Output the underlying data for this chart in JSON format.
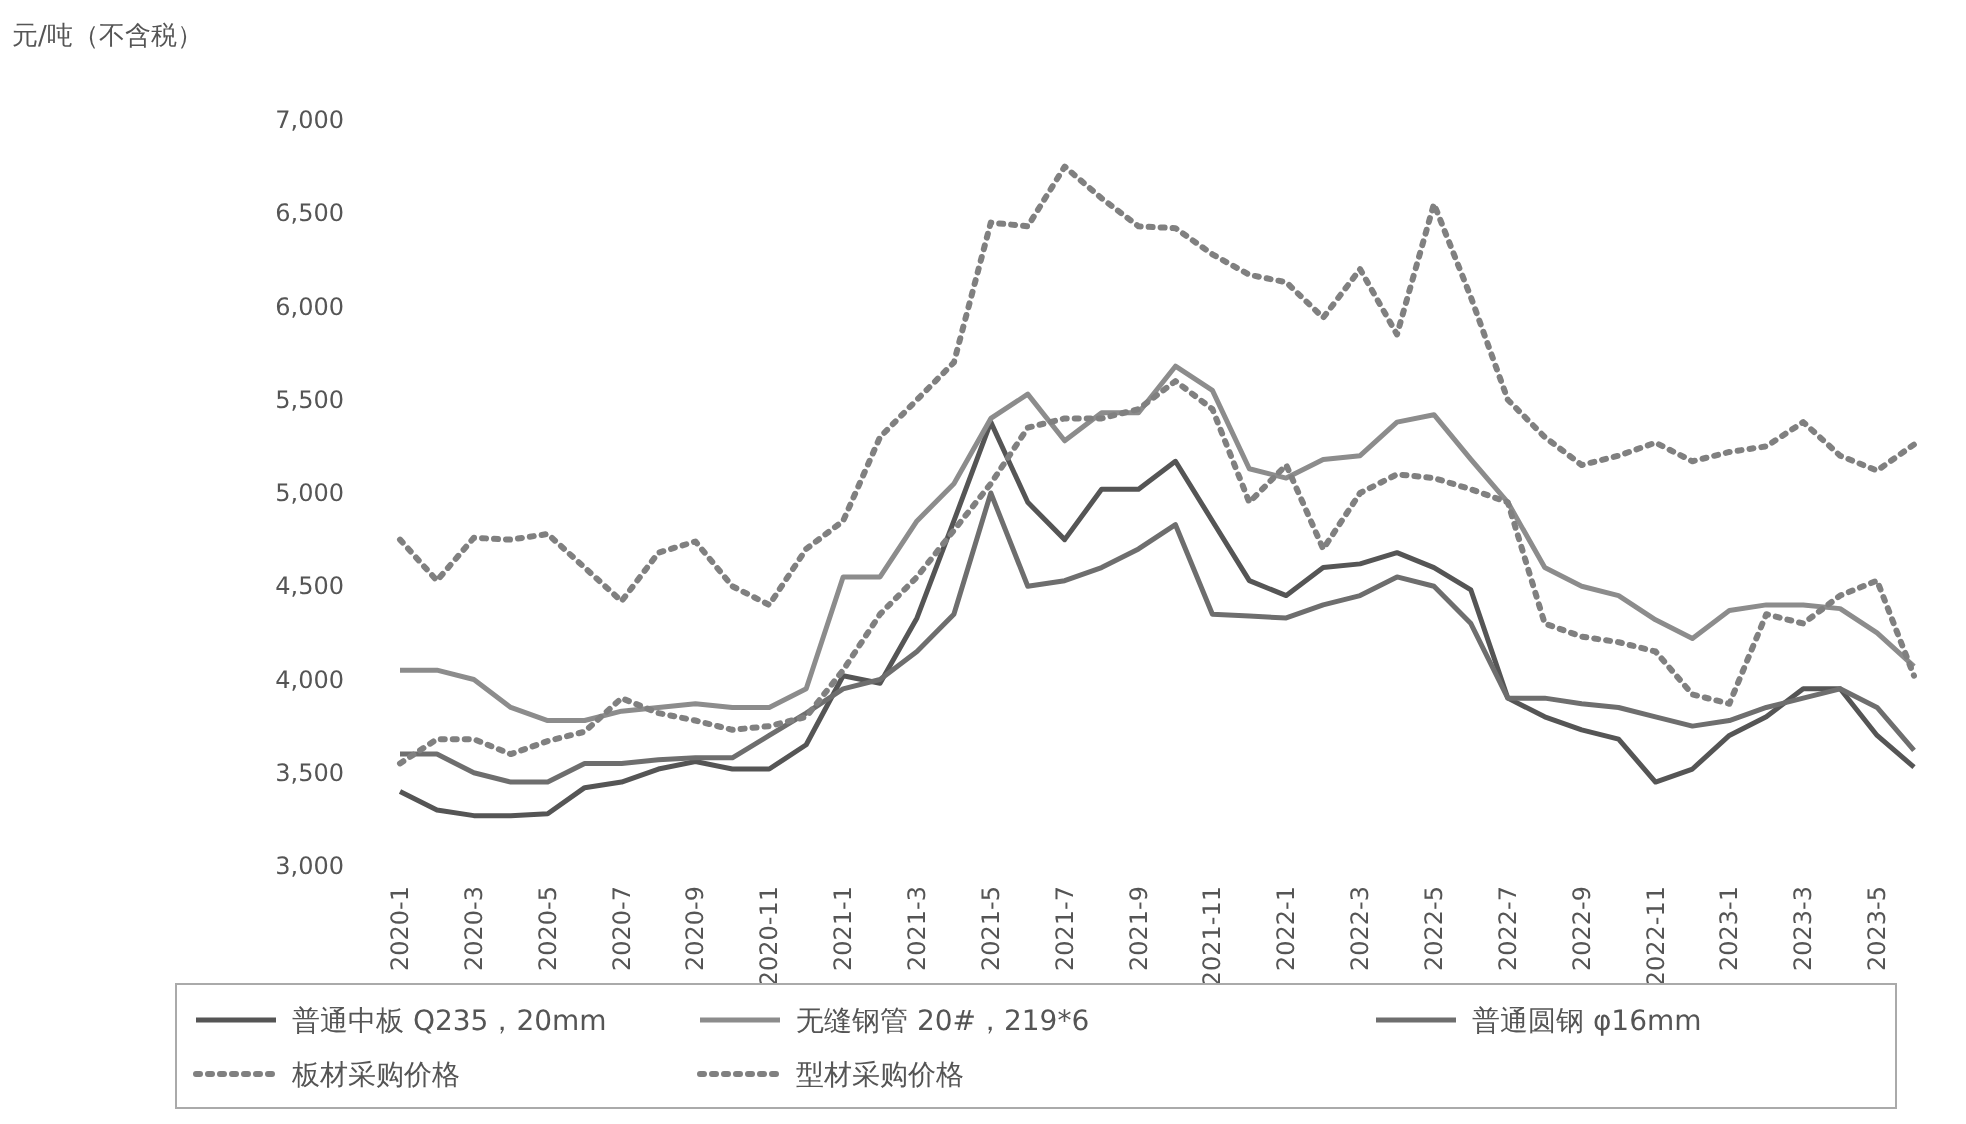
{
  "chart_data": {
    "type": "line",
    "ylabel": "元/吨（不含税）",
    "categories": [
      "2020-1",
      null,
      "2020-3",
      null,
      "2020-5",
      null,
      "2020-7",
      null,
      "2020-9",
      null,
      "2020-11",
      null,
      "2021-1",
      null,
      "2021-3",
      null,
      "2021-5",
      null,
      "2021-7",
      null,
      "2021-9",
      null,
      "2021-11",
      null,
      "2022-1",
      null,
      "2022-3",
      null,
      "2022-5",
      null,
      "2022-7",
      null,
      "2022-9",
      null,
      "2022-11",
      null,
      "2023-1",
      null,
      "2023-3",
      null,
      "2023-5",
      null
    ],
    "ylim": [
      3000,
      7000
    ],
    "yticks": [
      {
        "value": 3000,
        "label": "3,000"
      },
      {
        "value": 3500,
        "label": "3,500"
      },
      {
        "value": 4000,
        "label": "4,000"
      },
      {
        "value": 4500,
        "label": "4,500"
      },
      {
        "value": 5000,
        "label": "5,000"
      },
      {
        "value": 5500,
        "label": "5,500"
      },
      {
        "value": 6000,
        "label": "6,000"
      },
      {
        "value": 6500,
        "label": "6,500"
      },
      {
        "value": 7000,
        "label": "7,000"
      }
    ],
    "legend": "bottom",
    "grid": false,
    "marker": "none",
    "series": [
      {
        "name": "普通中板 Q235，20mm",
        "color": "#555555",
        "line_style": "solid",
        "values": [
          3400,
          3300,
          3270,
          3270,
          3280,
          3420,
          3450,
          3520,
          3560,
          3520,
          3520,
          3650,
          4020,
          3980,
          4330,
          4850,
          5380,
          4950,
          4750,
          5020,
          5020,
          5170,
          4850,
          4530,
          4450,
          4600,
          4620,
          4680,
          4600,
          4480,
          3900,
          3800,
          3730,
          3680,
          3450,
          3520,
          3700,
          3800,
          3950,
          3950,
          3700,
          3530
        ]
      },
      {
        "name": "无缝钢管 20#，219*6",
        "color": "#8c8c8c",
        "line_style": "solid",
        "values": [
          4050,
          4050,
          4000,
          3850,
          3780,
          3780,
          3830,
          3850,
          3870,
          3850,
          3850,
          3950,
          4550,
          4550,
          4850,
          5050,
          5400,
          5530,
          5280,
          5430,
          5430,
          5680,
          5550,
          5130,
          5080,
          5180,
          5200,
          5380,
          5420,
          5180,
          4950,
          4600,
          4500,
          4450,
          4320,
          4220,
          4370,
          4400,
          4400,
          4380,
          4250,
          4070
        ]
      },
      {
        "name": "普通圆钢 φ16mm",
        "color": "#6e6e6e",
        "line_style": "solid",
        "values": [
          3600,
          3600,
          3500,
          3450,
          3450,
          3550,
          3550,
          3570,
          3580,
          3580,
          3700,
          3820,
          3950,
          4000,
          4150,
          4350,
          5000,
          4500,
          4530,
          4600,
          4700,
          4830,
          4350,
          4340,
          4330,
          4400,
          4450,
          4550,
          4500,
          4300,
          3900,
          3900,
          3870,
          3850,
          3800,
          3750,
          3780,
          3850,
          3900,
          3950,
          3850,
          3620
        ]
      },
      {
        "name": "板材采购价格",
        "color": "#808080",
        "line_style": "dotted",
        "values": [
          3550,
          3680,
          3680,
          3600,
          3670,
          3720,
          3900,
          3820,
          3780,
          3730,
          3750,
          3800,
          4050,
          4350,
          4550,
          4800,
          5050,
          5350,
          5400,
          5400,
          5450,
          5600,
          5450,
          4950,
          5150,
          4700,
          5000,
          5100,
          5080,
          5020,
          4950,
          4300,
          4230,
          4200,
          4150,
          3920,
          3870,
          4350,
          4300,
          4450,
          4530,
          4020
        ]
      },
      {
        "name": "型材采购价格",
        "color": "#808080",
        "line_style": "dotted",
        "values": [
          4750,
          4530,
          4760,
          4750,
          4780,
          4600,
          4420,
          4680,
          4740,
          4500,
          4400,
          4700,
          4850,
          5300,
          5500,
          5700,
          6450,
          6430,
          6750,
          6580,
          6430,
          6420,
          6280,
          6170,
          6130,
          5940,
          6200,
          5850,
          6550,
          6050,
          5500,
          5300,
          5150,
          5200,
          5270,
          5170,
          5220,
          5250,
          5380,
          5200,
          5120,
          5260
        ]
      }
    ]
  }
}
